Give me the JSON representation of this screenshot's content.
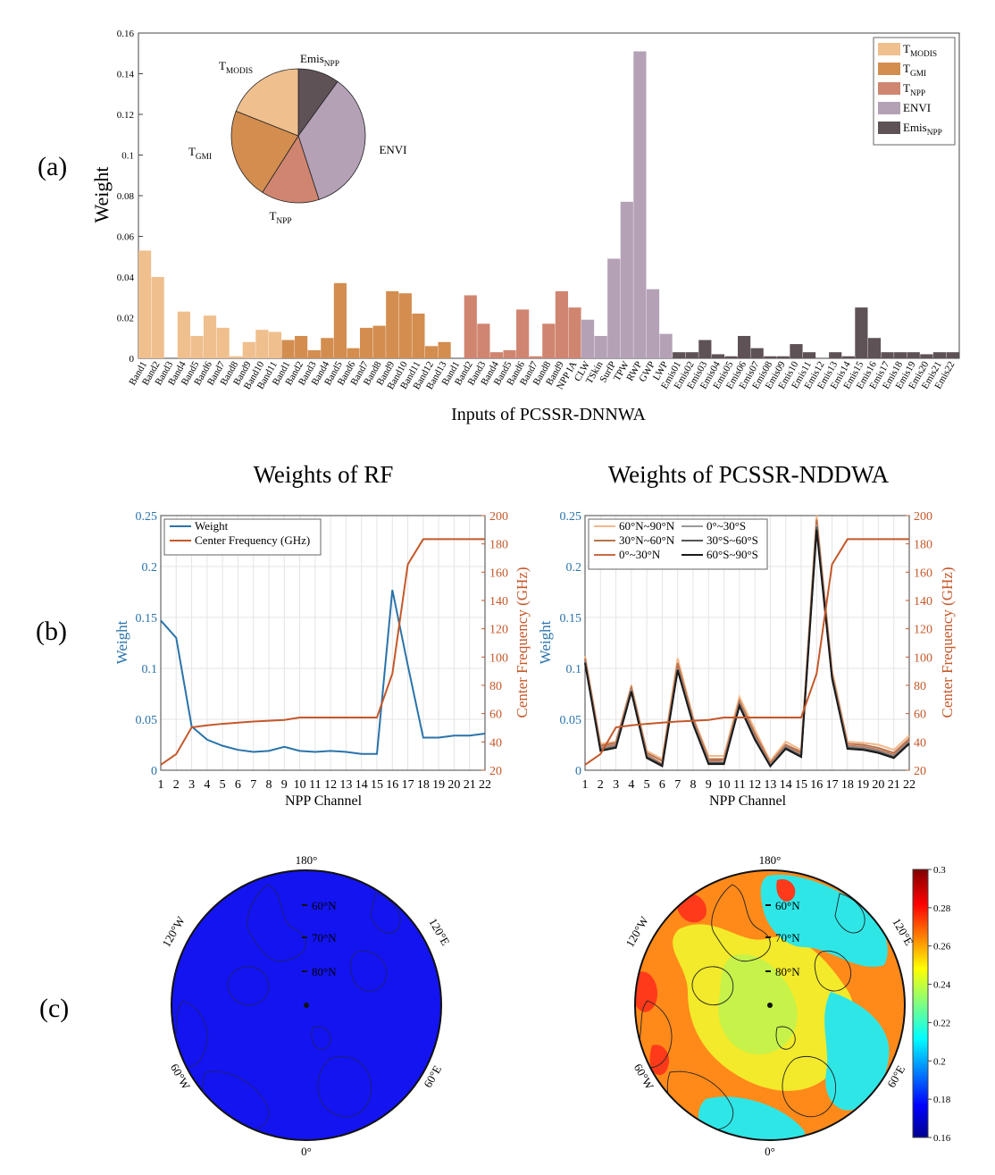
{
  "panel_labels": [
    "(a)",
    "(b)",
    "(c)"
  ],
  "colors": {
    "t_modis": "#efbf8e",
    "t_gmi": "#d38d4f",
    "t_npp": "#d08570",
    "envi": "#b4a1b6",
    "emis_npp": "#5e5257",
    "weight_line": "#2a73aa",
    "freq_line": "#c4582a"
  },
  "chart_data": [
    {
      "id": "a",
      "type": "bar",
      "xlabel": "Inputs of PCSSR-DNNWA",
      "ylabel": "Weight",
      "ylim": [
        0,
        0.16
      ],
      "yticks": [
        0,
        0.02,
        0.04,
        0.06,
        0.08,
        0.1,
        0.12,
        0.14,
        0.16
      ],
      "categories": [
        "Band1",
        "Band2",
        "Band3",
        "Band4",
        "Band5",
        "Band6",
        "Band7",
        "Band8",
        "Band9",
        "Band10",
        "Band11",
        "Band1",
        "Band2",
        "Band3",
        "Band4",
        "Band5",
        "Band6",
        "Band7",
        "Band8",
        "Band9",
        "Band10",
        "Band11",
        "Band12",
        "Band13",
        "Band1",
        "Band2",
        "Band3",
        "Band4",
        "Band5",
        "Band6",
        "Band7",
        "Band8",
        "Band9",
        "NPP IA",
        "CLW",
        "TSkin",
        "SurfP",
        "TPW",
        "RWP",
        "GWP",
        "LWP",
        "Emis01",
        "Emis02",
        "Emis03",
        "Emis04",
        "Emis05",
        "Emis06",
        "Emis07",
        "Emis08",
        "Emis09",
        "Emis10",
        "Emis11",
        "Emis12",
        "Emis13",
        "Emis14",
        "Emis15",
        "Emis16",
        "Emis17",
        "Emis18",
        "Emis19",
        "Emis20",
        "Emis21",
        "Emis22"
      ],
      "values": [
        0.053,
        0.04,
        0.0,
        0.023,
        0.011,
        0.021,
        0.015,
        0.001,
        0.008,
        0.014,
        0.013,
        0.009,
        0.011,
        0.004,
        0.01,
        0.037,
        0.005,
        0.015,
        0.016,
        0.033,
        0.032,
        0.022,
        0.006,
        0.008,
        0.0,
        0.031,
        0.017,
        0.003,
        0.004,
        0.024,
        0.001,
        0.017,
        0.033,
        0.025,
        0.019,
        0.011,
        0.049,
        0.077,
        0.151,
        0.034,
        0.012,
        0.003,
        0.003,
        0.009,
        0.002,
        0.001,
        0.011,
        0.005,
        0.001,
        0.001,
        0.007,
        0.003,
        0.0,
        0.003,
        0.001,
        0.025,
        0.01,
        0.003,
        0.003,
        0.003,
        0.002,
        0.003,
        0.003
      ],
      "group_of_bar": [
        0,
        0,
        0,
        0,
        0,
        0,
        0,
        0,
        0,
        0,
        0,
        1,
        1,
        1,
        1,
        1,
        1,
        1,
        1,
        1,
        1,
        1,
        1,
        1,
        2,
        2,
        2,
        2,
        2,
        2,
        2,
        2,
        2,
        2,
        3,
        3,
        3,
        3,
        3,
        3,
        3,
        4,
        4,
        4,
        4,
        4,
        4,
        4,
        4,
        4,
        4,
        4,
        4,
        4,
        4,
        4,
        4,
        4,
        4,
        4,
        4,
        4,
        4
      ],
      "legend": {
        "position": "top-right",
        "entries": [
          {
            "main": "T",
            "sub": "MODIS",
            "color": "#efbf8e"
          },
          {
            "main": "T",
            "sub": "GMI",
            "color": "#d38d4f"
          },
          {
            "main": "T",
            "sub": "NPP",
            "color": "#d08570"
          },
          {
            "main": "ENVI",
            "sub": "",
            "color": "#b4a1b6"
          },
          {
            "main": "Emis",
            "sub": "NPP",
            "color": "#5e5257"
          }
        ]
      },
      "inset_pie": {
        "type": "pie",
        "order": [
          "Emis_NPP",
          "ENVI",
          "T_NPP",
          "T_GMI",
          "T_MODIS"
        ],
        "values": [
          0.1,
          0.35,
          0.14,
          0.22,
          0.19
        ],
        "labels": [
          {
            "main": "Emis",
            "sub": "NPP"
          },
          {
            "main": "ENVI",
            "sub": ""
          },
          {
            "main": "T",
            "sub": "NPP"
          },
          {
            "main": "T",
            "sub": "GMI"
          },
          {
            "main": "T",
            "sub": "MODIS"
          }
        ],
        "colors": [
          "#5e5257",
          "#b4a1b6",
          "#d08570",
          "#d38d4f",
          "#efbf8e"
        ]
      }
    },
    {
      "id": "b1",
      "type": "line",
      "title": "Weights of RF",
      "xlabel": "NPP Channel",
      "ylabel": "Weight",
      "y2label": "Center Frequency (GHz)",
      "x": [
        1,
        2,
        3,
        4,
        5,
        6,
        7,
        8,
        9,
        10,
        11,
        12,
        13,
        14,
        15,
        16,
        17,
        18,
        19,
        20,
        21,
        22
      ],
      "ylim": [
        0,
        0.25
      ],
      "yticks": [
        0,
        0.05,
        0.1,
        0.15,
        0.2,
        0.25
      ],
      "y2lim": [
        20,
        200
      ],
      "y2ticks": [
        20,
        40,
        60,
        80,
        100,
        120,
        140,
        160,
        180,
        200
      ],
      "grid": true,
      "legend_position": "top-left",
      "series": [
        {
          "name": "Weight",
          "axis": "left",
          "color": "#2a73aa",
          "values": [
            0.147,
            0.13,
            0.043,
            0.03,
            0.024,
            0.02,
            0.018,
            0.019,
            0.023,
            0.019,
            0.018,
            0.019,
            0.018,
            0.016,
            0.016,
            0.177,
            0.103,
            0.032,
            0.032,
            0.034,
            0.034,
            0.036
          ]
        },
        {
          "name": "Center Frequency (GHz)",
          "axis": "right",
          "color": "#c4582a",
          "values": [
            23.8,
            31.4,
            50.3,
            51.76,
            52.8,
            53.596,
            54.4,
            54.94,
            55.5,
            57.29,
            57.29,
            57.29,
            57.29,
            57.29,
            57.29,
            88.2,
            165.5,
            183.31,
            183.31,
            183.31,
            183.31,
            183.31
          ]
        }
      ]
    },
    {
      "id": "b2",
      "type": "line",
      "title": "Weights of PCSSR-NDDWA",
      "xlabel": "NPP Channel",
      "ylabel": "Weight",
      "y2label": "Center Frequency (GHz)",
      "x": [
        1,
        2,
        3,
        4,
        5,
        6,
        7,
        8,
        9,
        10,
        11,
        12,
        13,
        14,
        15,
        16,
        17,
        18,
        19,
        20,
        21,
        22
      ],
      "ylim": [
        0,
        0.25
      ],
      "yticks": [
        0,
        0.05,
        0.1,
        0.15,
        0.2,
        0.25
      ],
      "y2lim": [
        20,
        200
      ],
      "y2ticks": [
        20,
        40,
        60,
        80,
        100,
        120,
        140,
        160,
        180,
        200
      ],
      "grid": true,
      "legend_position": "top-left",
      "legend_columns": 2,
      "series": [
        {
          "name": "60°N~90°N",
          "axis": "left",
          "color": "#f2b98a",
          "values": [
            0.112,
            0.026,
            0.028,
            0.083,
            0.019,
            0.011,
            0.11,
            0.052,
            0.014,
            0.014,
            0.072,
            0.04,
            0.009,
            0.028,
            0.02,
            0.25,
            0.098,
            0.028,
            0.027,
            0.025,
            0.02,
            0.034
          ]
        },
        {
          "name": "30°N~60°N",
          "axis": "left",
          "color": "#b5754f",
          "values": [
            0.11,
            0.024,
            0.027,
            0.081,
            0.017,
            0.009,
            0.105,
            0.05,
            0.011,
            0.011,
            0.068,
            0.036,
            0.007,
            0.025,
            0.018,
            0.246,
            0.095,
            0.026,
            0.025,
            0.022,
            0.017,
            0.031
          ]
        },
        {
          "name": "0°~30°N",
          "axis": "left",
          "color": "#c96a47",
          "values": [
            0.108,
            0.022,
            0.025,
            0.08,
            0.015,
            0.006,
            0.102,
            0.048,
            0.009,
            0.01,
            0.066,
            0.033,
            0.006,
            0.024,
            0.016,
            0.243,
            0.093,
            0.024,
            0.023,
            0.02,
            0.015,
            0.029
          ]
        },
        {
          "name": "0°~30°S",
          "axis": "left",
          "color": "#9a9a9a",
          "values": [
            0.107,
            0.021,
            0.024,
            0.079,
            0.014,
            0.005,
            0.1,
            0.047,
            0.008,
            0.008,
            0.065,
            0.032,
            0.005,
            0.023,
            0.015,
            0.241,
            0.092,
            0.023,
            0.022,
            0.019,
            0.014,
            0.028
          ]
        },
        {
          "name": "30°S~60°S",
          "axis": "left",
          "color": "#555555",
          "values": [
            0.106,
            0.02,
            0.023,
            0.078,
            0.013,
            0.005,
            0.099,
            0.046,
            0.007,
            0.007,
            0.064,
            0.031,
            0.004,
            0.022,
            0.014,
            0.239,
            0.091,
            0.022,
            0.021,
            0.018,
            0.013,
            0.027
          ]
        },
        {
          "name": "60°S~90°S",
          "axis": "left",
          "color": "#1a1a1a",
          "values": [
            0.105,
            0.019,
            0.022,
            0.077,
            0.012,
            0.004,
            0.098,
            0.045,
            0.006,
            0.006,
            0.063,
            0.03,
            0.004,
            0.021,
            0.013,
            0.236,
            0.09,
            0.021,
            0.02,
            0.017,
            0.012,
            0.026
          ]
        },
        {
          "name": "",
          "axis": "right",
          "color": "#c4582a",
          "values": [
            23.8,
            31.4,
            50.3,
            51.76,
            52.8,
            53.596,
            54.4,
            54.94,
            55.5,
            57.29,
            57.29,
            57.29,
            57.29,
            57.29,
            57.29,
            88.2,
            165.5,
            183.31,
            183.31,
            183.31,
            183.31,
            183.31
          ]
        }
      ]
    },
    {
      "id": "c1",
      "type": "heatmap",
      "projection": "polar-stereographic",
      "fill": "#1414f0",
      "lon_labels": [
        "180°",
        "120°E",
        "60°E",
        "0°",
        "60°W",
        "120°W"
      ],
      "lat_labels": [
        "60°N",
        "70°N",
        "80°N"
      ]
    },
    {
      "id": "c2",
      "type": "heatmap",
      "projection": "polar-stereographic",
      "lon_labels": [
        "180°",
        "120°E",
        "60°E",
        "0°",
        "60°W",
        "120°W"
      ],
      "lat_labels": [
        "60°N",
        "70°N",
        "80°N"
      ],
      "colorbar": {
        "range": [
          0.16,
          0.3
        ],
        "ticks": [
          "0.3",
          "0.28",
          "0.26",
          "0.24",
          "0.22",
          "0.2",
          "0.18",
          "0.16"
        ]
      }
    }
  ]
}
